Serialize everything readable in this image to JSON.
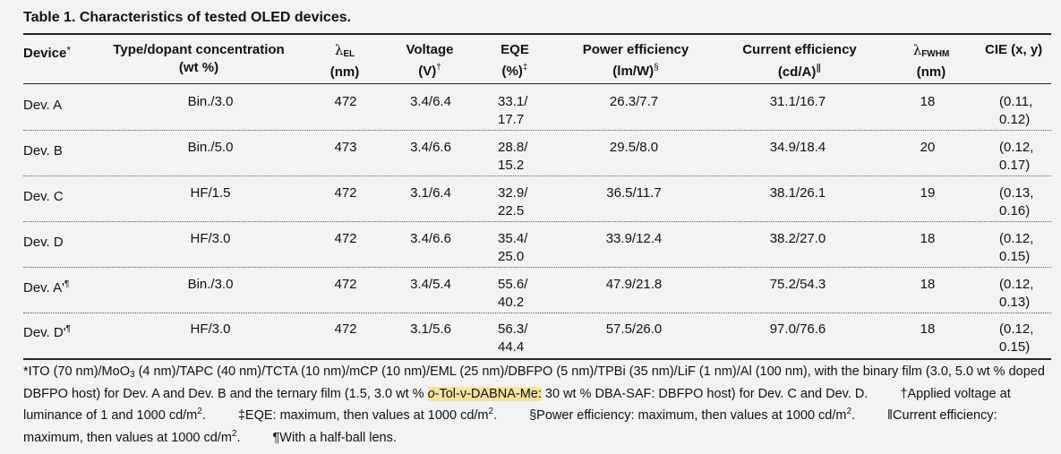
{
  "title": "Table 1. Characteristics of tested OLED devices.",
  "headers": {
    "device": "Device",
    "device_mark": "*",
    "type_l1": "Type/dopant concentration",
    "type_l2": "(wt %)",
    "lam_el_sub": "EL",
    "lam_el_unit": "(nm)",
    "voltage_l1": "Voltage",
    "voltage_l2": "(V)",
    "voltage_mark": "†",
    "eqe_l1": "EQE",
    "eqe_l2": "(%)",
    "eqe_mark": "‡",
    "pe_l1": "Power efficiency",
    "pe_l2": "(lm/W)",
    "pe_mark": "§",
    "ce_l1": "Current efficiency",
    "ce_l2": "(cd/A)",
    "ce_mark": "‖",
    "fwhm_sub": "FWHM",
    "fwhm_unit": "(nm)",
    "cie": "CIE (x, y)"
  },
  "rows": [
    {
      "device": "Dev. A",
      "mark": "",
      "type": "Bin./3.0",
      "lam": "472",
      "voltage": "3.4/6.4",
      "eqe1": "33.1/",
      "eqe2": "17.7",
      "pe": "26.3/7.7",
      "ce": "31.1/16.7",
      "fwhm": "18",
      "cie1": "(0.11,",
      "cie2": "0.12)"
    },
    {
      "device": "Dev. B",
      "mark": "",
      "type": "Bin./5.0",
      "lam": "473",
      "voltage": "3.4/6.6",
      "eqe1": "28.8/",
      "eqe2": "15.2",
      "pe": "29.5/8.0",
      "ce": "34.9/18.4",
      "fwhm": "20",
      "cie1": "(0.12,",
      "cie2": "0.17)"
    },
    {
      "device": "Dev. C",
      "mark": "",
      "type": "HF/1.5",
      "lam": "472",
      "voltage": "3.1/6.4",
      "eqe1": "32.9/",
      "eqe2": "22.5",
      "pe": "36.5/11.7",
      "ce": "38.1/26.1",
      "fwhm": "19",
      "cie1": "(0.13,",
      "cie2": "0.16)"
    },
    {
      "device": "Dev. D",
      "mark": "",
      "type": "HF/3.0",
      "lam": "472",
      "voltage": "3.4/6.6",
      "eqe1": "35.4/",
      "eqe2": "25.0",
      "pe": "33.9/12.4",
      "ce": "38.2/27.0",
      "fwhm": "18",
      "cie1": "(0.12,",
      "cie2": "0.15)"
    },
    {
      "device": "Dev. A'",
      "mark": "¶",
      "type": "Bin./3.0",
      "lam": "472",
      "voltage": "3.4/5.4",
      "eqe1": "55.6/",
      "eqe2": "40.2",
      "pe": "47.9/21.8",
      "ce": "75.2/54.3",
      "fwhm": "18",
      "cie1": "(0.12,",
      "cie2": "0.13)"
    },
    {
      "device": "Dev. D'",
      "mark": "¶",
      "type": "HF/3.0",
      "lam": "472",
      "voltage": "3.1/5.6",
      "eqe1": "56.3/",
      "eqe2": "44.4",
      "pe": "57.5/26.0",
      "ce": "97.0/76.6",
      "fwhm": "18",
      "cie1": "(0.12,",
      "cie2": "0.15)"
    }
  ],
  "footnotes": {
    "f1a": "*ITO (70 nm)/MoO",
    "f1_sub3": "3",
    "f1b": " (4 nm)/TAPC (40 nm)/TCTA (10 nm)/mCP (10 nm)/EML (25 nm)/DBFPO (5 nm)/TPBi (35 nm)/LiF (1 nm)/Al (100 nm), with the binary film (3.0, 5.0 wt % doped DBFPO host) for Dev. A and Dev. B and the ternary film (1.5, 3.0 wt % ",
    "f1_hl_italic": "o",
    "f1_hl": "-Tol-ν-DABNA-Me:",
    "f1c": " 30 wt % DBA-SAF: DBFPO host) for Dev. C and Dev. D.",
    "f2a": "†Applied voltage at luminance of 1 and 1000 cd/m",
    "f2_sup": "2",
    "f2b": ".",
    "f3a": "‡EQE: maximum, then values at 1000 cd/m",
    "f3_sup": "2",
    "f3b": ".",
    "f4a": "§Power efficiency: maximum, then values at 1000 cd/m",
    "f4_sup": "2",
    "f4b": ".",
    "f5a": "‖Current efficiency: maximum, then values at 1000 cd/m",
    "f5_sup": "2",
    "f5b": ".",
    "f6": "¶With a half-ball lens."
  },
  "colors": {
    "background": "#f3f3f3",
    "highlight": "#f7e39a",
    "text": "#111111"
  }
}
